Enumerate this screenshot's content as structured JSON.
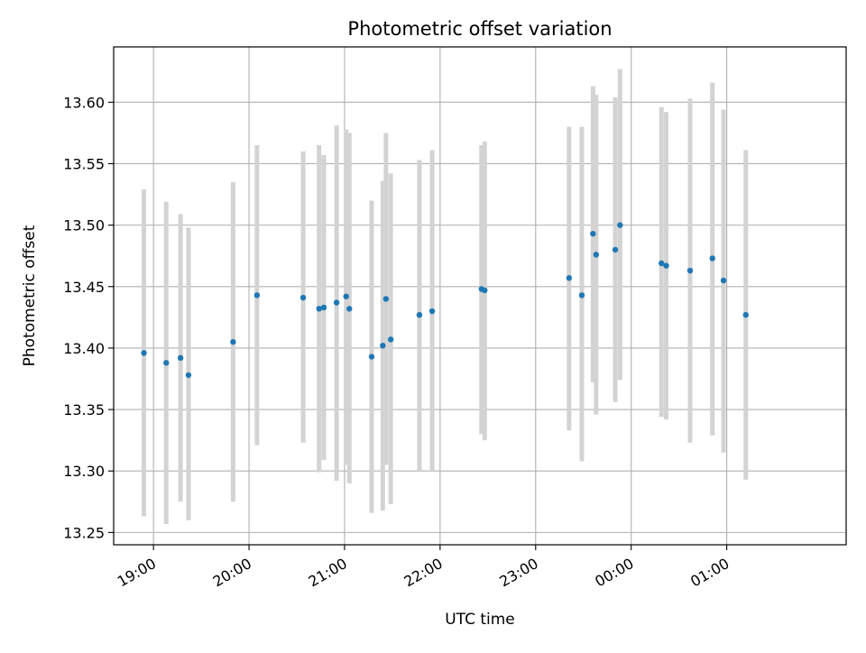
{
  "chart_data": {
    "type": "scatter",
    "title": "Photometric offset variation",
    "xlabel": "UTC time",
    "ylabel": "Photometric offset",
    "x_tick_labels": [
      "19:00",
      "20:00",
      "21:00",
      "22:00",
      "23:00",
      "00:00",
      "01:00"
    ],
    "y_tick_labels": [
      "13.25",
      "13.30",
      "13.35",
      "13.40",
      "13.45",
      "13.50",
      "13.55",
      "13.60"
    ],
    "xlim": [
      "18:35",
      "02:15"
    ],
    "ylim": [
      13.24,
      13.645
    ],
    "grid": true,
    "marker_color": "#1f77b4",
    "errorbar_color": "#d3d3d3",
    "series": [
      {
        "points": [
          {
            "x": "18:54",
            "y": 13.396,
            "y_low": 13.263,
            "y_high": 13.529
          },
          {
            "x": "19:08",
            "y": 13.388,
            "y_low": 13.257,
            "y_high": 13.519
          },
          {
            "x": "19:17",
            "y": 13.392,
            "y_low": 13.275,
            "y_high": 13.509
          },
          {
            "x": "19:22",
            "y": 13.378,
            "y_low": 13.26,
            "y_high": 13.498
          },
          {
            "x": "19:50",
            "y": 13.405,
            "y_low": 13.275,
            "y_high": 13.535
          },
          {
            "x": "20:05",
            "y": 13.443,
            "y_low": 13.321,
            "y_high": 13.565
          },
          {
            "x": "20:34",
            "y": 13.441,
            "y_low": 13.323,
            "y_high": 13.56
          },
          {
            "x": "20:44",
            "y": 13.432,
            "y_low": 13.299,
            "y_high": 13.565
          },
          {
            "x": "20:47",
            "y": 13.433,
            "y_low": 13.309,
            "y_high": 13.557
          },
          {
            "x": "20:55",
            "y": 13.437,
            "y_low": 13.292,
            "y_high": 13.581
          },
          {
            "x": "21:01",
            "y": 13.442,
            "y_low": 13.305,
            "y_high": 13.578
          },
          {
            "x": "21:03",
            "y": 13.432,
            "y_low": 13.29,
            "y_high": 13.575
          },
          {
            "x": "21:17",
            "y": 13.393,
            "y_low": 13.266,
            "y_high": 13.52
          },
          {
            "x": "21:24",
            "y": 13.402,
            "y_low": 13.268,
            "y_high": 13.536
          },
          {
            "x": "21:26",
            "y": 13.44,
            "y_low": 13.305,
            "y_high": 13.575
          },
          {
            "x": "21:29",
            "y": 13.407,
            "y_low": 13.273,
            "y_high": 13.542
          },
          {
            "x": "21:47",
            "y": 13.427,
            "y_low": 13.3,
            "y_high": 13.553
          },
          {
            "x": "21:55",
            "y": 13.43,
            "y_low": 13.3,
            "y_high": 13.561
          },
          {
            "x": "22:26",
            "y": 13.448,
            "y_low": 13.33,
            "y_high": 13.565
          },
          {
            "x": "22:28",
            "y": 13.447,
            "y_low": 13.325,
            "y_high": 13.568
          },
          {
            "x": "23:21",
            "y": 13.457,
            "y_low": 13.333,
            "y_high": 13.58
          },
          {
            "x": "23:29",
            "y": 13.443,
            "y_low": 13.308,
            "y_high": 13.58
          },
          {
            "x": "23:36",
            "y": 13.493,
            "y_low": 13.372,
            "y_high": 13.613
          },
          {
            "x": "23:38",
            "y": 13.476,
            "y_low": 13.346,
            "y_high": 13.606
          },
          {
            "x": "23:50",
            "y": 13.48,
            "y_low": 13.356,
            "y_high": 13.604
          },
          {
            "x": "23:53",
            "y": 13.5,
            "y_low": 13.374,
            "y_high": 13.627
          },
          {
            "x": "00:19",
            "y": 13.469,
            "y_low": 13.344,
            "y_high": 13.596
          },
          {
            "x": "00:22",
            "y": 13.467,
            "y_low": 13.342,
            "y_high": 13.592
          },
          {
            "x": "00:37",
            "y": 13.463,
            "y_low": 13.323,
            "y_high": 13.603
          },
          {
            "x": "00:51",
            "y": 13.473,
            "y_low": 13.329,
            "y_high": 13.616
          },
          {
            "x": "00:58",
            "y": 13.455,
            "y_low": 13.315,
            "y_high": 13.594
          },
          {
            "x": "01:12",
            "y": 13.427,
            "y_low": 13.293,
            "y_high": 13.561
          }
        ]
      }
    ]
  }
}
